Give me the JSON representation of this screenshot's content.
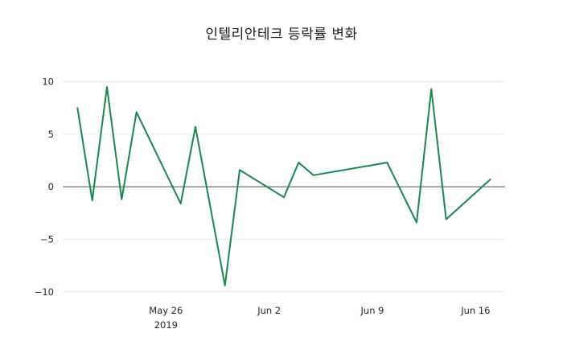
{
  "chart_data": {
    "type": "line",
    "title": "인텔리안테크 등락률 변화",
    "xlabel": "",
    "ylabel": "",
    "legend_position": "none",
    "line_color": "#17874f",
    "line_width": 2,
    "grid": {
      "horizontal": true,
      "grid_color": "#ececec",
      "zero_line_color": "#4d4d4d"
    },
    "xlim": [
      "2019-05-19",
      "2019-06-18"
    ],
    "ylim": [
      -10.4,
      10.5
    ],
    "yticks": [
      {
        "value": -10,
        "label": "−10"
      },
      {
        "value": -5,
        "label": "−5"
      },
      {
        "value": 0,
        "label": "0"
      },
      {
        "value": 5,
        "label": "5"
      },
      {
        "value": 10,
        "label": "10"
      }
    ],
    "xticks": [
      {
        "date": "2019-05-26",
        "label": "May 26",
        "sublabel": "2019"
      },
      {
        "date": "2019-06-02",
        "label": "Jun 2",
        "sublabel": ""
      },
      {
        "date": "2019-06-09",
        "label": "Jun 9",
        "sublabel": ""
      },
      {
        "date": "2019-06-16",
        "label": "Jun 16",
        "sublabel": ""
      }
    ],
    "series": [
      {
        "name": "등락률",
        "x": [
          "2019-05-20",
          "2019-05-21",
          "2019-05-22",
          "2019-05-23",
          "2019-05-24",
          "2019-05-27",
          "2019-05-28",
          "2019-05-30",
          "2019-05-31",
          "2019-06-03",
          "2019-06-04",
          "2019-06-05",
          "2019-06-10",
          "2019-06-12",
          "2019-06-13",
          "2019-06-14",
          "2019-06-17"
        ],
        "values": [
          7.5,
          -1.3,
          9.5,
          -1.2,
          7.1,
          -1.6,
          5.7,
          -9.4,
          1.6,
          -1.0,
          2.3,
          1.1,
          2.3,
          -3.4,
          9.3,
          -3.1,
          0.7
        ]
      }
    ]
  }
}
